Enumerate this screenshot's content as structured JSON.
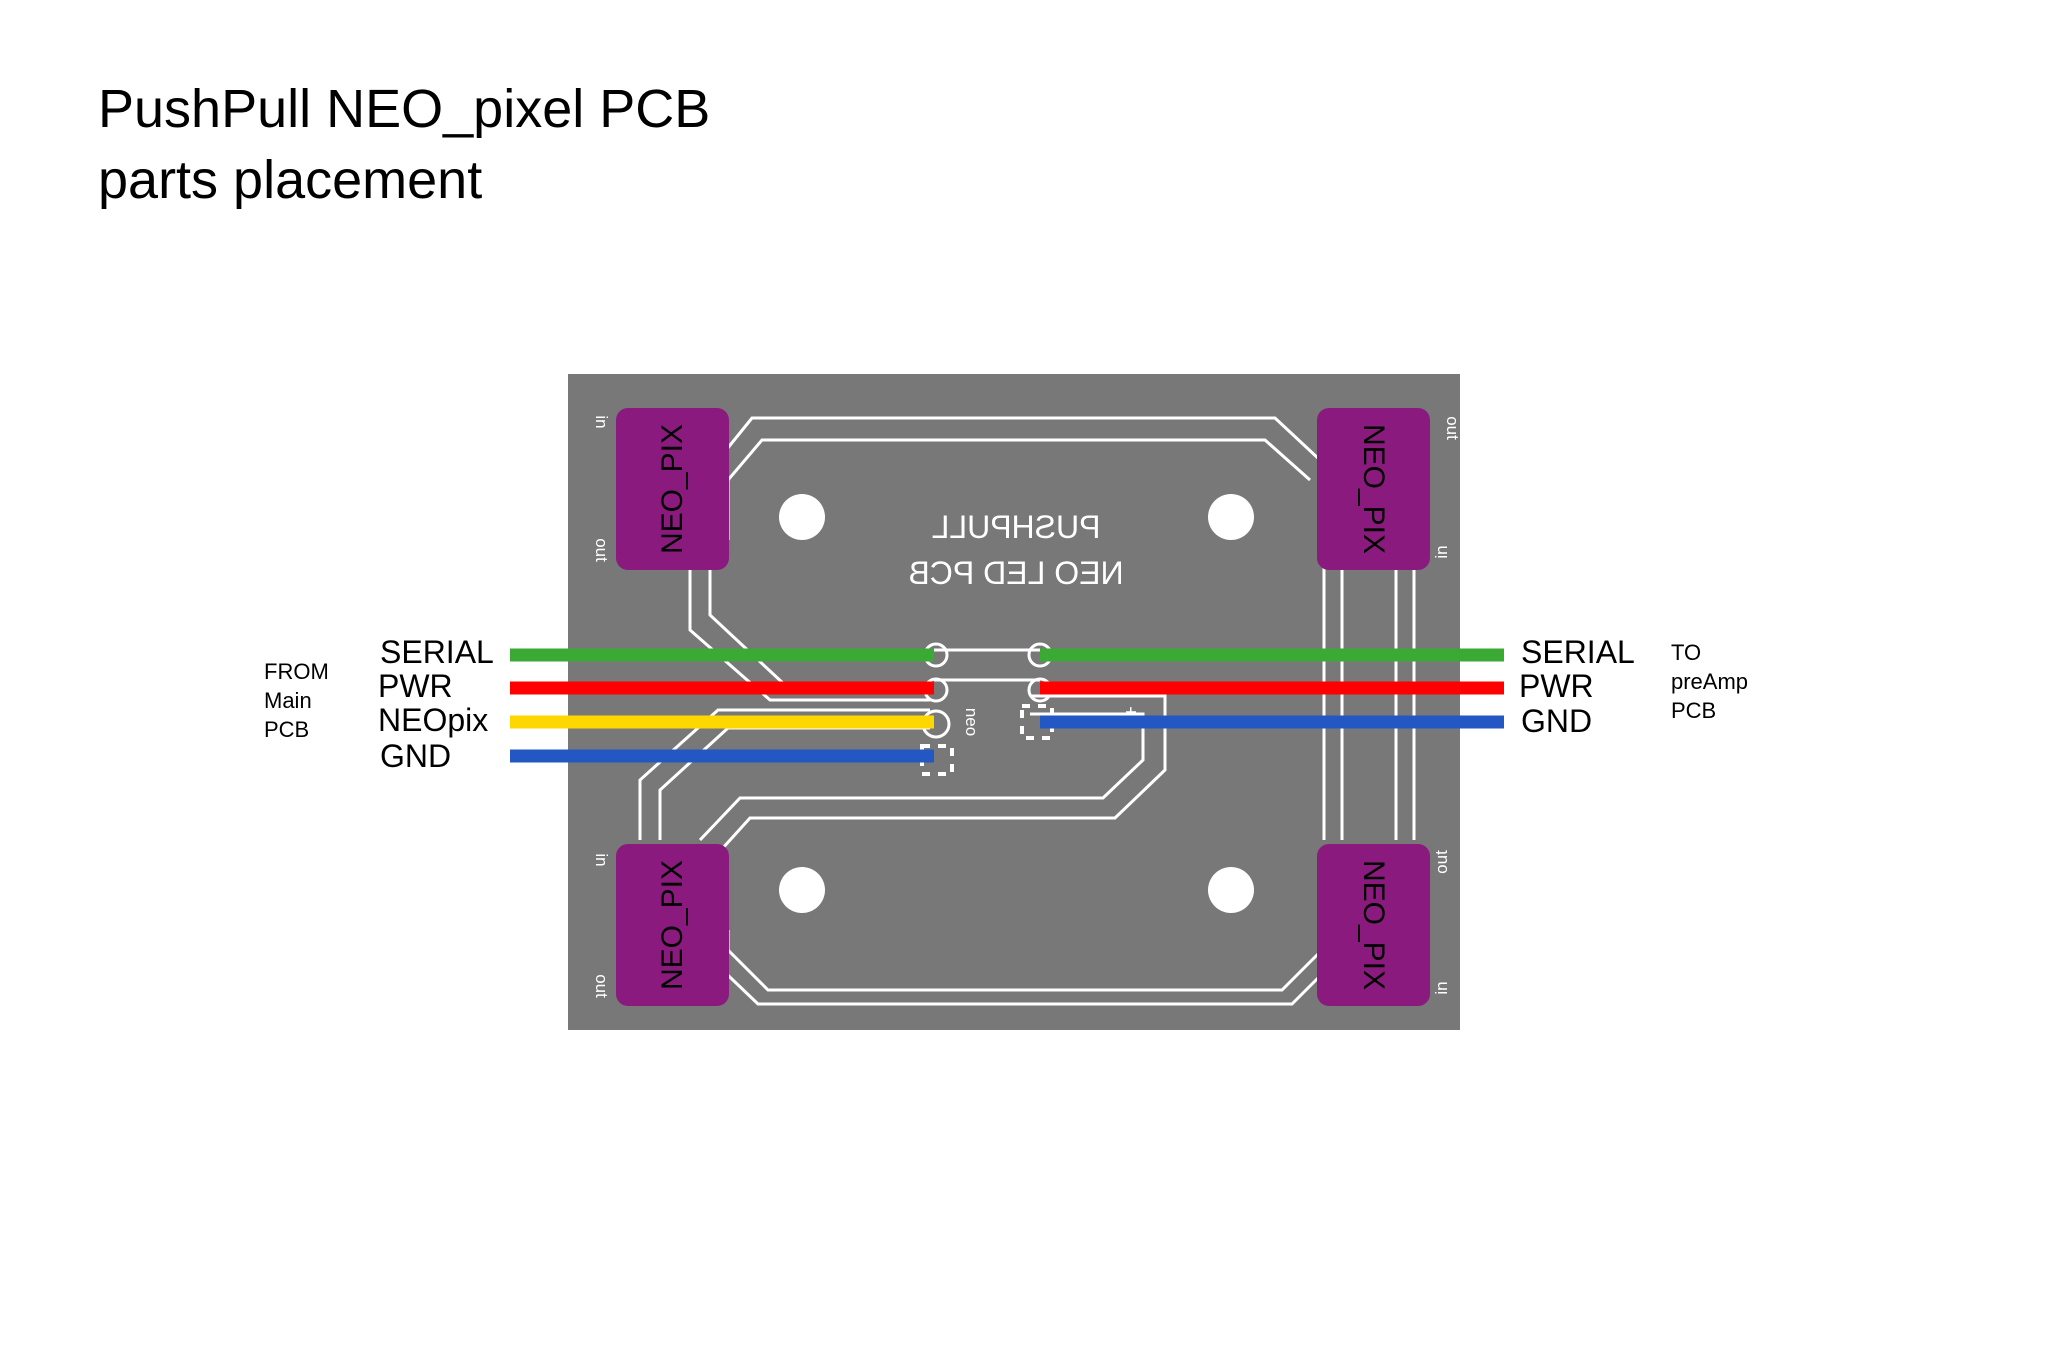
{
  "title": {
    "line1": "PushPull NEO_pixel PCB",
    "line2": "parts placement"
  },
  "left_note": [
    "FROM",
    "Main",
    "PCB"
  ],
  "right_note": [
    "TO",
    "preAmp",
    "PCB"
  ],
  "left_wires": [
    {
      "label": "SERIAL",
      "color": "#3aaa35"
    },
    {
      "label": "PWR",
      "color": "#ff0000"
    },
    {
      "label": "NEOpix",
      "color": "#ffd700"
    },
    {
      "label": "GND",
      "color": "#2257c4"
    }
  ],
  "right_wires": [
    {
      "label": "SERIAL",
      "color": "#3aaa35"
    },
    {
      "label": "PWR",
      "color": "#ff0000"
    },
    {
      "label": "GND",
      "color": "#2257c4"
    }
  ],
  "board": {
    "silk_line1": "PUSHPULL",
    "silk_line2": "NEO LED PCB",
    "component_label": "NEO_PIX",
    "pin_in": "in",
    "pin_out": "out",
    "pad_neo": "neo",
    "pad_plus": "+",
    "board_color": "#787878",
    "component_color": "#8b1a7e"
  }
}
